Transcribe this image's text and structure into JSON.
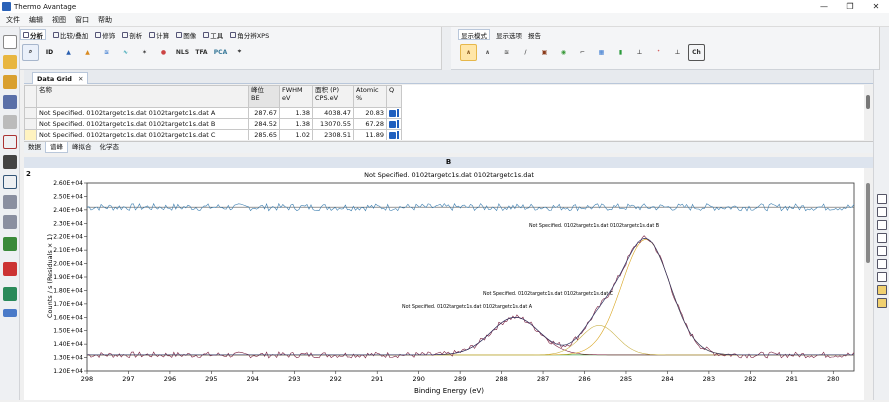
{
  "app": {
    "title": "Thermo Avantage",
    "win_min": "—",
    "win_max": "❐",
    "win_close": "✕"
  },
  "menu": [
    "文件",
    "编辑",
    "视图",
    "窗口",
    "帮助"
  ],
  "ribbon": {
    "left_tabs": [
      "分析",
      "比较/叠加",
      "修饰",
      "剖析",
      "计算",
      "图像",
      "工具",
      "角分辨XPS"
    ],
    "right_tabs": [
      "显示模式",
      "显示选项",
      "报告"
    ],
    "tool_labels": {
      "id": "ID",
      "nls": "NLS",
      "tfa": "TFA",
      "pca": "PCA",
      "ch": "Ch"
    }
  },
  "doc_tab": {
    "label": "Data Grid",
    "close": "✕"
  },
  "grid": {
    "headers": [
      "名称",
      "峰位\nBE",
      "FWHM\neV",
      "面积 (P)\nCPS.eV",
      "Atomic\n%",
      "Q"
    ],
    "rows": [
      {
        "name": "Not Specified. 0102targetc1s.dat 0102targetc1s.dat A",
        "be": "287.67",
        "fwhm": "1.38",
        "area": "4038.47",
        "atomic": "20.83"
      },
      {
        "name": "Not Specified. 0102targetc1s.dat 0102targetc1s.dat B",
        "be": "284.52",
        "fwhm": "1.38",
        "area": "13070.55",
        "atomic": "67.28"
      },
      {
        "name": "Not Specified. 0102targetc1s.dat 0102targetc1s.dat C",
        "be": "285.65",
        "fwhm": "1.02",
        "area": "2308.51",
        "atomic": "11.89"
      }
    ]
  },
  "subtabs": [
    "数据",
    "谱峰",
    "峰拟合",
    "化学态"
  ],
  "plot": {
    "header": "B",
    "number": "2",
    "title": "Not Specified. 0102targetc1s.dat 0102targetc1s.dat",
    "peak_labels": {
      "a": "Not Specified. 0102targetc1s.dat 0102targetc1s.dat A",
      "b": "Not Specified. 0102targetc1s.dat 0102targetc1s.dat B",
      "c": "Not Specified. 0102targetc1s.dat 0102targetc1s.dat C"
    }
  },
  "chart_data": {
    "type": "line",
    "title": "Not Specified. 0102targetc1s.dat 0102targetc1s.dat",
    "xlabel": "Binding Energy (eV)",
    "ylabel": "Counts / s  (Residuals × 1)",
    "xlim": [
      298,
      279.5
    ],
    "ylim": [
      12000,
      26000
    ],
    "x_reversed": true,
    "x_ticks": [
      298,
      297,
      296,
      295,
      294,
      293,
      292,
      291,
      290,
      289,
      288,
      287,
      286,
      285,
      284,
      283,
      282,
      281,
      280
    ],
    "y_tick_labels": [
      "1.20E+04",
      "1.30E+04",
      "1.40E+04",
      "1.50E+04",
      "1.60E+04",
      "1.70E+04",
      "1.80E+04",
      "1.90E+04",
      "2.00E+04",
      "2.10E+04",
      "2.20E+04",
      "2.30E+04",
      "2.40E+04",
      "2.50E+04",
      "2.60E+04"
    ],
    "y_ticks": [
      12000,
      13000,
      14000,
      15000,
      16000,
      17000,
      18000,
      19000,
      20000,
      21000,
      22000,
      23000,
      24000,
      25000,
      26000
    ],
    "background": 13200,
    "residual_offset": 24200,
    "peaks": [
      {
        "name": "A",
        "center": 287.67,
        "fwhm": 1.38,
        "height": 2800,
        "color": "#7a1f3a"
      },
      {
        "name": "B",
        "center": 284.52,
        "fwhm": 1.38,
        "height": 8600,
        "color": "#d9a520"
      },
      {
        "name": "C",
        "center": 285.65,
        "fwhm": 1.02,
        "height": 2200,
        "color": "#c9b24a"
      }
    ],
    "colors": {
      "data": "#7a2040",
      "envelope": "#333a66",
      "background": "#3a9a3a",
      "residual": "#3d7fb0"
    }
  }
}
